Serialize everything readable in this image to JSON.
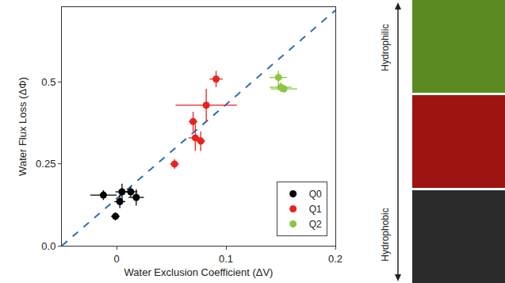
{
  "chart_data": {
    "type": "scatter",
    "x_label": "Water Exclusion Coefficient (ΔV)",
    "y_label": "Water Flux Loss (ΔΦ)",
    "xlim": [
      -0.05,
      0.2
    ],
    "xticks": [
      0,
      0.1,
      0.2
    ],
    "ylim": [
      0,
      0.73
    ],
    "yticks": [
      {
        "value": 0,
        "label": "0.0"
      },
      0.25,
      0.5
    ],
    "grid": false,
    "legend": "bottom right",
    "series": [
      {
        "name": "Q0",
        "color": "#000000",
        "marker": "circle",
        "x": [
          -0.012,
          -0.001,
          0.003,
          0.005,
          0.013,
          0.018
        ],
        "values": [
          0.155,
          0.09,
          0.135,
          0.165,
          0.165,
          0.148
        ],
        "x_error": [
          0.012,
          0.004,
          0.005,
          0.006,
          0.006,
          0.007
        ],
        "y_error": [
          0.015,
          0.012,
          0.02,
          0.025,
          0.015,
          0.025
        ]
      },
      {
        "name": "Q1",
        "color": "#e8231f",
        "marker": "circle",
        "x": [
          0.053,
          0.07,
          0.072,
          0.077,
          0.082,
          0.091
        ],
        "values": [
          0.25,
          0.38,
          0.33,
          0.32,
          0.43,
          0.51
        ],
        "x_error": [
          0.004,
          0.004,
          0.006,
          0.004,
          0.028,
          0.006
        ],
        "y_error": [
          0.015,
          0.03,
          0.04,
          0.03,
          0.05,
          0.025
        ]
      },
      {
        "name": "Q2",
        "color": "#8cc63f",
        "marker": "circle",
        "x": [
          0.148,
          0.15,
          0.153
        ],
        "values": [
          0.515,
          0.485,
          0.48
        ],
        "x_error": [
          0.008,
          0.01,
          0.012
        ],
        "y_error": [
          0.02,
          0.015,
          0.012
        ]
      }
    ],
    "reference_line": {
      "x": [
        -0.05,
        0.2
      ],
      "y": [
        0,
        0.72
      ],
      "color": "#2e6db4",
      "line_style": "dashed"
    }
  },
  "diagram": {
    "top_label": "Hydrophilic",
    "bottom_label": "Hydrophobic"
  }
}
